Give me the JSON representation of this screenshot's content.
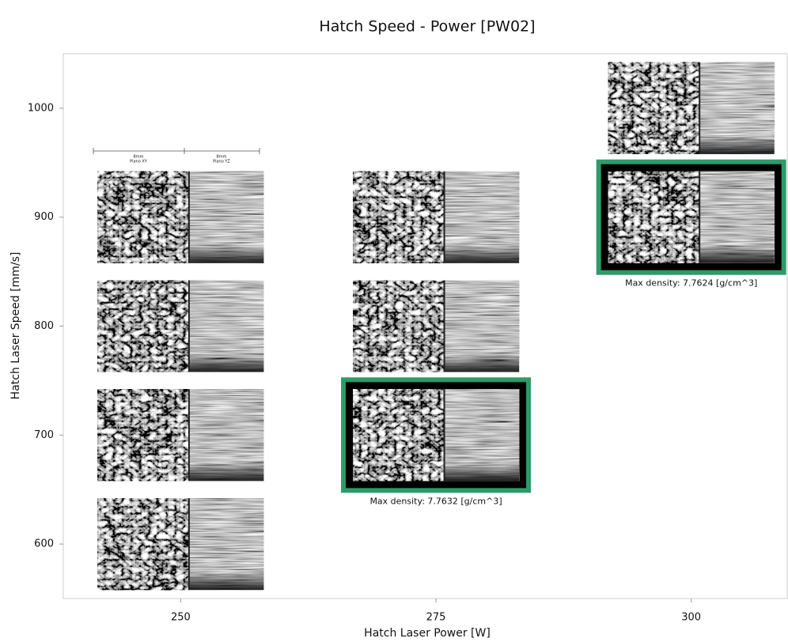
{
  "chart_data": {
    "type": "scatter",
    "title": "Hatch Speed - Power [PW02]",
    "x_label": "Hatch Laser Power [W]",
    "y_label": "Hatch Laser Speed [mm/s]",
    "x": [
      250,
      250,
      250,
      250,
      275,
      275,
      275,
      300,
      300
    ],
    "y": [
      900,
      800,
      700,
      600,
      900,
      800,
      700,
      1000,
      900
    ],
    "xlim": [
      238.5,
      309.4
    ],
    "ylim": [
      550,
      1050
    ],
    "xticks": [
      250,
      275,
      300
    ],
    "yticks": [
      600,
      700,
      800,
      900,
      1000
    ],
    "frame_color": "#2e9a6a",
    "annotations": [
      {
        "x": 275,
        "y": 700,
        "text": "Max density: 7.7632 [g/cm^3]"
      },
      {
        "x": 300,
        "y": 900,
        "text": "Max density: 7.7624 [g/cm^3]"
      }
    ],
    "scale_labels": [
      [
        "8mm",
        "Piano XY"
      ],
      [
        "8mm",
        "Piano YZ"
      ]
    ]
  }
}
